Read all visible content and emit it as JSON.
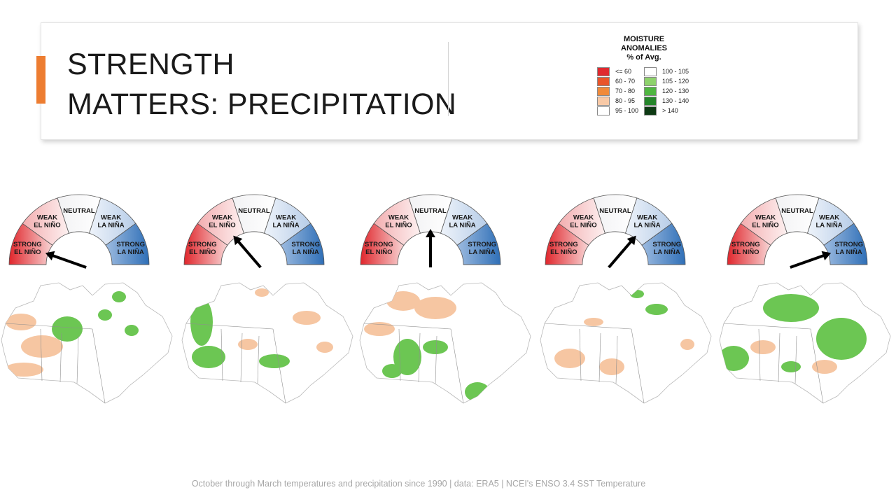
{
  "slide": {
    "title_line1": "STRENGTH",
    "title_line2": "MATTERS: PRECIPITATION",
    "footer": "October through March temperatures and precipitation since 1990 | data: ERA5 | NCEI's ENSO 3.4 SST Temperature"
  },
  "legend": {
    "title_line1": "MOISTURE",
    "title_line2": "ANOMALIES",
    "title_line3": "% of Avg.",
    "items_left": [
      {
        "label": "<= 60",
        "color": "#e0292f"
      },
      {
        "label": "60 - 70",
        "color": "#e9552a"
      },
      {
        "label": "70 - 80",
        "color": "#f08a3a"
      },
      {
        "label": "80 - 95",
        "color": "#f8c9a6"
      },
      {
        "label": "95 - 100",
        "color": "#ffffff"
      }
    ],
    "items_right": [
      {
        "label": "100 - 105",
        "color": "#ffffff"
      },
      {
        "label": "105 - 120",
        "color": "#8ed26c"
      },
      {
        "label": "120 - 130",
        "color": "#4fb640"
      },
      {
        "label": "130 - 140",
        "color": "#25852a"
      },
      {
        "label": "> 140",
        "color": "#0e3a14"
      }
    ]
  },
  "gauge_labels": {
    "strong_el_nino_1": "STRONG",
    "strong_el_nino_2": "EL NIÑO",
    "weak_el_nino_1": "WEAK",
    "weak_el_nino_2": "EL NIÑO",
    "neutral": "NEUTRAL",
    "weak_la_nina_1": "WEAK",
    "weak_la_nina_2": "LA NIÑA",
    "strong_la_nina_1": "STRONG",
    "strong_la_nina_2": "LA NIÑA"
  },
  "panels": [
    {
      "needle_state": "STRONG EL NIÑO",
      "needle_angle_deg": 161
    },
    {
      "needle_state": "WEAK EL NIÑO",
      "needle_angle_deg": 125
    },
    {
      "needle_state": "NEUTRAL",
      "needle_angle_deg": 90
    },
    {
      "needle_state": "WEAK LA NIÑA",
      "needle_angle_deg": 55
    },
    {
      "needle_state": "STRONG LA NIÑA",
      "needle_angle_deg": 19
    }
  ],
  "colors": {
    "accent": "#ed7d31",
    "el_nino": "#e0262c",
    "la_nina": "#2f6fb7",
    "dry": "#f6c6a2",
    "wet": "#6cc653"
  }
}
